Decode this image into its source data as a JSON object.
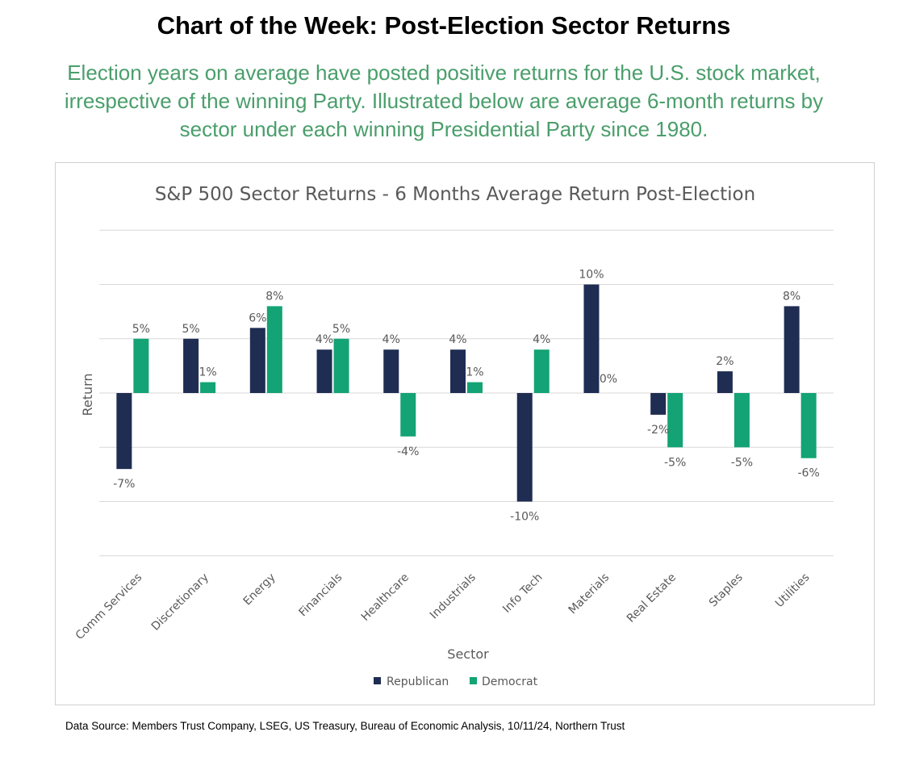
{
  "header": {
    "title": "Chart of the Week: Post-Election Sector Returns",
    "subtitle": "Election years on average have posted positive returns for the U.S. stock market, irrespective of the winning Party. Illustrated below are average 6-month returns by sector under each winning Presidential Party since 1980."
  },
  "footer": {
    "source": "Data Source: Members Trust Company, LSEG, US Treasury, Bureau of Economic Analysis, 10/11/24, Northern Trust"
  },
  "colors": {
    "republican": "#1f2d52",
    "democrat": "#13a375",
    "gridline": "#d9d9d9",
    "subtitle": "#4a9e6b"
  },
  "chart_data": {
    "type": "bar",
    "title": "S&P 500 Sector Returns - 6 Months Average Return Post-Election",
    "xlabel": "Sector",
    "ylabel": "Return",
    "ylim": [
      -15,
      15
    ],
    "grid": true,
    "legend_position": "bottom",
    "categories": [
      "Comm Services",
      "Discretionary",
      "Energy",
      "Financials",
      "Healthcare",
      "Industrials",
      "Info Tech",
      "Materials",
      "Real Estate",
      "Staples",
      "Utilities"
    ],
    "series": [
      {
        "name": "Republican",
        "values": [
          -7,
          5,
          6,
          4,
          4,
          4,
          -10,
          10,
          -2,
          2,
          8
        ],
        "labels": [
          "-7%",
          "5%",
          "6%",
          "4%",
          "4%",
          "4%",
          "-10%",
          "10%",
          "-2%",
          "2%",
          "8%"
        ]
      },
      {
        "name": "Democrat",
        "values": [
          5,
          1,
          8,
          5,
          -4,
          1,
          4,
          0,
          -5,
          -5,
          -6
        ],
        "labels": [
          "5%",
          "1%",
          "8%",
          "5%",
          "-4%",
          "1%",
          "4%",
          "0%",
          "-5%",
          "-5%",
          "-6%"
        ]
      }
    ]
  }
}
